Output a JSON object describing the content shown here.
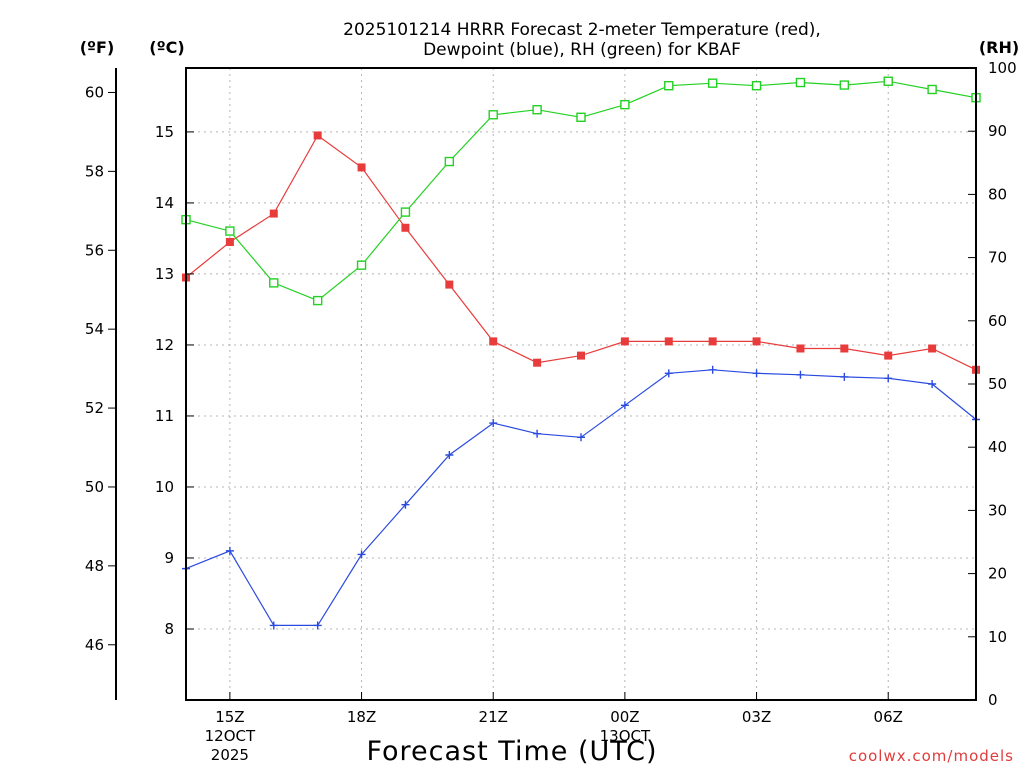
{
  "chart_data": {
    "type": "line",
    "title_line1": "2025101214 HRRR Forecast 2-meter Temperature (red),",
    "title_line2": "Dewpoint (blue), RH (green) for KBAF",
    "xlabel": "Forecast Time (UTC)",
    "credit": "coolwx.com/models",
    "units": {
      "fahrenheit": "(ºF)",
      "celsius": "(ºC)",
      "rh": "(RH)"
    },
    "celsius_axis": {
      "range": [
        7.0,
        15.9
      ],
      "ticks": [
        8,
        9,
        10,
        11,
        12,
        13,
        14,
        15
      ]
    },
    "fahrenheit_axis": {
      "ticks": [
        46,
        48,
        50,
        52,
        54,
        56,
        58,
        60
      ]
    },
    "rh_axis": {
      "range": [
        0,
        100
      ],
      "ticks": [
        0,
        10,
        20,
        30,
        40,
        50,
        60,
        70,
        80,
        90,
        100
      ]
    },
    "x_range_hours": [
      14,
      32
    ],
    "x_ticks": [
      {
        "hour": 15,
        "line1": "15Z",
        "line2": "12OCT",
        "line3": "2025"
      },
      {
        "hour": 18,
        "line1": "18Z",
        "line2": "",
        "line3": ""
      },
      {
        "hour": 21,
        "line1": "21Z",
        "line2": "",
        "line3": ""
      },
      {
        "hour": 24,
        "line1": "00Z",
        "line2": "13OCT",
        "line3": ""
      },
      {
        "hour": 27,
        "line1": "03Z",
        "line2": "",
        "line3": ""
      },
      {
        "hour": 30,
        "line1": "06Z",
        "line2": "",
        "line3": ""
      }
    ],
    "x_hours": [
      14,
      15,
      16,
      17,
      18,
      19,
      20,
      21,
      22,
      23,
      24,
      25,
      26,
      27,
      28,
      29,
      30,
      31,
      32
    ],
    "series": [
      {
        "name": "Temperature",
        "axis": "celsius",
        "color": "#e83c3c",
        "marker": "filled-square",
        "values": [
          12.95,
          13.45,
          13.85,
          14.95,
          14.5,
          13.65,
          12.85,
          12.05,
          11.75,
          11.85,
          12.05,
          12.05,
          12.05,
          12.05,
          11.95,
          11.95,
          11.85,
          11.95,
          11.65
        ]
      },
      {
        "name": "Dewpoint",
        "axis": "celsius",
        "color": "#2a4be0",
        "marker": "plus",
        "values": [
          8.85,
          9.1,
          8.05,
          8.05,
          9.05,
          9.75,
          10.45,
          10.9,
          10.75,
          10.7,
          11.15,
          11.6,
          11.65,
          11.6,
          11.58,
          11.55,
          11.53,
          11.45,
          10.95
        ]
      },
      {
        "name": "RH",
        "axis": "rh",
        "color": "#22d122",
        "marker": "open-square",
        "values": [
          76,
          74.2,
          66,
          63.2,
          68.8,
          77.2,
          85.2,
          92.6,
          93.4,
          92.2,
          94.2,
          97.2,
          97.6,
          97.2,
          97.7,
          97.3,
          97.9,
          96.6,
          95.3
        ]
      }
    ]
  }
}
